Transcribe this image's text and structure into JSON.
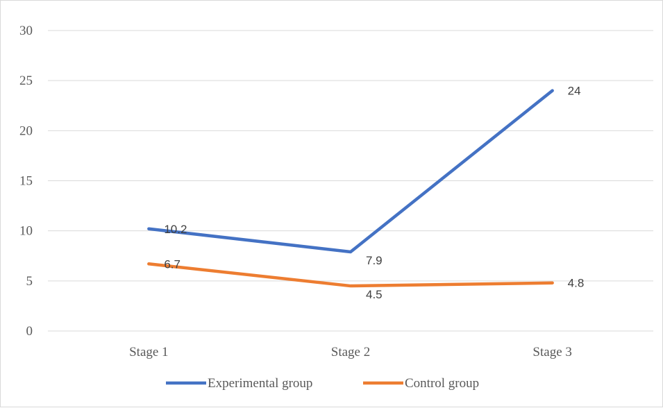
{
  "chart_data": {
    "type": "line",
    "title": "",
    "xlabel": "",
    "ylabel": "",
    "categories": [
      "Stage 1",
      "Stage 2",
      "Stage 3"
    ],
    "ylim": [
      0,
      30
    ],
    "yticks": [
      0,
      5,
      10,
      15,
      20,
      25,
      30
    ],
    "grid": true,
    "legend_position": "bottom",
    "series": [
      {
        "name": "Experimental group",
        "values": [
          10.2,
          7.9,
          24
        ],
        "labels": [
          "10.2",
          "7.9",
          "24"
        ],
        "color": "#4472c4"
      },
      {
        "name": "Control group",
        "values": [
          6.7,
          4.5,
          4.8
        ],
        "labels": [
          "6.7",
          "4.5",
          "4.8"
        ],
        "color": "#ed7d31"
      }
    ]
  }
}
